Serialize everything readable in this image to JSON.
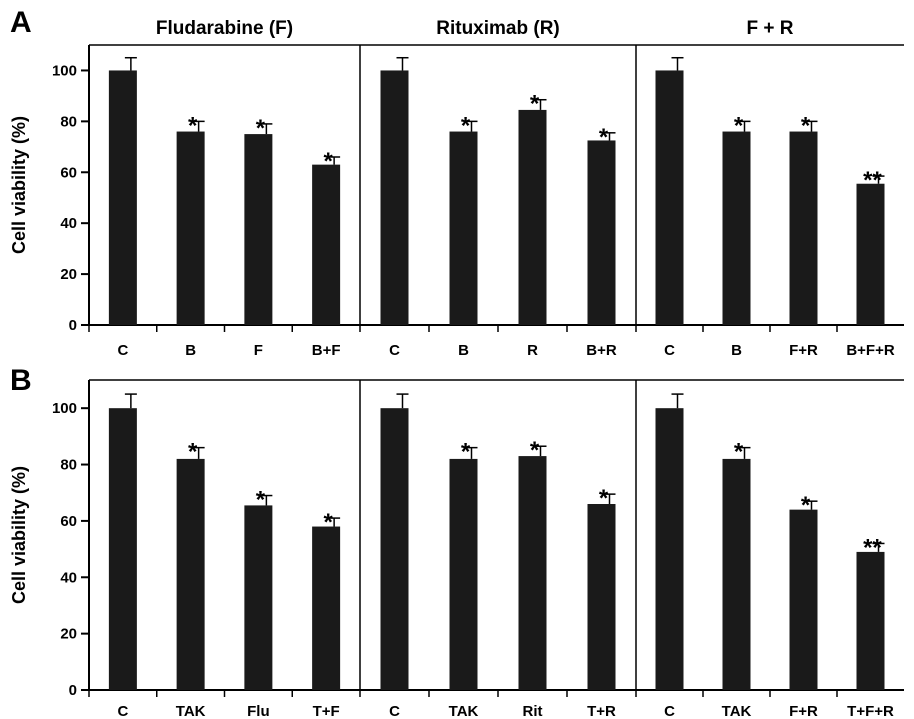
{
  "chart_data": [
    {
      "type": "bar",
      "panel": "A",
      "ylabel": "Cell viability (%)",
      "ylim": [
        0,
        110
      ],
      "yticks": [
        0,
        20,
        40,
        60,
        80,
        100
      ],
      "groups": [
        {
          "title": "Fludarabine (F)",
          "bars": [
            {
              "category": "C",
              "value": 100,
              "error": 5,
              "sig": ""
            },
            {
              "category": "B",
              "value": 76,
              "error": 4,
              "sig": "*"
            },
            {
              "category": "F",
              "value": 75,
              "error": 4,
              "sig": "*"
            },
            {
              "category": "B+F",
              "value": 63,
              "error": 3,
              "sig": "*"
            }
          ]
        },
        {
          "title": "Rituximab (R)",
          "bars": [
            {
              "category": "C",
              "value": 100,
              "error": 5,
              "sig": ""
            },
            {
              "category": "B",
              "value": 76,
              "error": 4,
              "sig": "*"
            },
            {
              "category": "R",
              "value": 84.5,
              "error": 4,
              "sig": "*"
            },
            {
              "category": "B+R",
              "value": 72.5,
              "error": 3,
              "sig": "*"
            }
          ]
        },
        {
          "title": "F + R",
          "bars": [
            {
              "category": "C",
              "value": 100,
              "error": 5,
              "sig": ""
            },
            {
              "category": "B",
              "value": 76,
              "error": 4,
              "sig": "*"
            },
            {
              "category": "F+R",
              "value": 76,
              "error": 4,
              "sig": "*"
            },
            {
              "category": "B+F+R",
              "value": 55.5,
              "error": 3,
              "sig": "**"
            }
          ]
        }
      ]
    },
    {
      "type": "bar",
      "panel": "B",
      "ylabel": "Cell viability (%)",
      "ylim": [
        0,
        110
      ],
      "yticks": [
        0,
        20,
        40,
        60,
        80,
        100
      ],
      "groups": [
        {
          "title": "",
          "bars": [
            {
              "category": "C",
              "value": 100,
              "error": 5,
              "sig": ""
            },
            {
              "category": "TAK",
              "value": 82,
              "error": 4,
              "sig": "*"
            },
            {
              "category": "Flu",
              "value": 65.5,
              "error": 3.5,
              "sig": "*"
            },
            {
              "category": "T+F",
              "value": 58,
              "error": 3,
              "sig": "*"
            }
          ]
        },
        {
          "title": "",
          "bars": [
            {
              "category": "C",
              "value": 100,
              "error": 5,
              "sig": ""
            },
            {
              "category": "TAK",
              "value": 82,
              "error": 4,
              "sig": "*"
            },
            {
              "category": "Rit",
              "value": 83,
              "error": 3.5,
              "sig": "*"
            },
            {
              "category": "T+R",
              "value": 66,
              "error": 3.5,
              "sig": "*"
            }
          ]
        },
        {
          "title": "",
          "bars": [
            {
              "category": "C",
              "value": 100,
              "error": 5,
              "sig": ""
            },
            {
              "category": "TAK",
              "value": 82,
              "error": 4,
              "sig": "*"
            },
            {
              "category": "F+R",
              "value": 64,
              "error": 3,
              "sig": "*"
            },
            {
              "category": "T+F+R",
              "value": 49,
              "error": 3,
              "sig": "**"
            }
          ]
        }
      ]
    }
  ],
  "colors": {
    "bar": "#1a1a1a",
    "axis": "#000000"
  }
}
